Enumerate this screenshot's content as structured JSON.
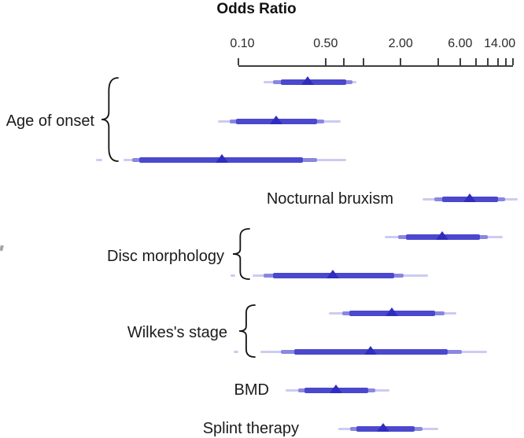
{
  "chart_data": {
    "type": "forest",
    "variant": "odds-ratio forest plot with nested credible intervals",
    "title": "Odds Ratio",
    "x_scale": "log",
    "x_axis": {
      "range": [
        0.1,
        16.0
      ],
      "ticks": [
        0.1,
        0.5,
        0.7,
        1,
        2,
        4,
        6,
        8,
        10,
        12,
        14,
        16
      ],
      "labeled_ticks": [
        {
          "value": 0.1,
          "label": "0.10"
        },
        {
          "value": 0.5,
          "label": "0.50"
        },
        {
          "value": 2,
          "label": "2.00"
        },
        {
          "value": 6,
          "label": "6.00"
        },
        {
          "value": 14,
          "label": "14.00"
        }
      ]
    },
    "groups": [
      {
        "label": "Age of onset",
        "brace": true,
        "row_indices": [
          0,
          1,
          2
        ]
      },
      {
        "label": "Nocturnal bruxism",
        "brace": false,
        "row_indices": [
          3
        ]
      },
      {
        "label": "Disc morphology",
        "brace": true,
        "row_indices": [
          4,
          5
        ]
      },
      {
        "label": "Wilkes's stage",
        "brace": true,
        "row_indices": [
          6,
          7
        ]
      },
      {
        "label": "BMD",
        "brace": false,
        "row_indices": [
          8
        ]
      },
      {
        "label": "Splint therapy",
        "brace": false,
        "row_indices": [
          9
        ]
      }
    ],
    "rows": [
      {
        "group": "Age of onset",
        "odds_ratio": 0.36,
        "ci_inner": [
          0.22,
          0.73
        ],
        "ci_mid": [
          0.19,
          0.82
        ],
        "ci_outer": [
          0.16,
          0.88
        ]
      },
      {
        "group": "Age of onset",
        "odds_ratio": 0.2,
        "ci_inner": [
          0.096,
          0.43
        ],
        "ci_mid": [
          0.085,
          0.49
        ],
        "ci_outer": [
          0.069,
          0.66
        ]
      },
      {
        "group": "Age of onset",
        "odds_ratio": 0.074,
        "ci_inner": [
          0.016,
          0.33
        ],
        "ci_mid": [
          0.014,
          0.43
        ],
        "ci_outer": [
          0.012,
          0.73
        ],
        "tail_fragment": [
          0.0072,
          0.0081
        ]
      },
      {
        "group": "Nocturnal bruxism",
        "odds_ratio": 7.2,
        "ci_inner": [
          4.3,
          12.1
        ],
        "ci_mid": [
          3.7,
          13.8
        ],
        "ci_outer": [
          3.0,
          17.3
        ]
      },
      {
        "group": "Disc morphology",
        "odds_ratio": 4.3,
        "ci_inner": [
          2.2,
          8.6
        ],
        "ci_mid": [
          1.9,
          10.0
        ],
        "ci_outer": [
          1.5,
          13.1
        ]
      },
      {
        "group": "Disc morphology",
        "odds_ratio": 0.57,
        "ci_inner": [
          0.19,
          1.78
        ],
        "ci_mid": [
          0.16,
          2.1
        ],
        "ci_outer": [
          0.13,
          3.3
        ],
        "tail_fragment": [
          0.086,
          0.094
        ]
      },
      {
        "group": "Wilkes's stage",
        "odds_ratio": 1.7,
        "ci_inner": [
          0.78,
          3.8
        ],
        "ci_mid": [
          0.68,
          4.5
        ],
        "ci_outer": [
          0.53,
          5.6
        ]
      },
      {
        "group": "Wilkes's stage",
        "odds_ratio": 1.15,
        "ci_inner": [
          0.28,
          4.8
        ],
        "ci_mid": [
          0.22,
          6.2
        ],
        "ci_outer": [
          0.15,
          9.9
        ],
        "tail_fragment": [
          0.092,
          0.1
        ]
      },
      {
        "group": "BMD",
        "odds_ratio": 0.61,
        "ci_inner": [
          0.34,
          1.1
        ],
        "ci_mid": [
          0.3,
          1.25
        ],
        "ci_outer": [
          0.24,
          1.63
        ]
      },
      {
        "group": "Splint therapy",
        "odds_ratio": 1.45,
        "ci_inner": [
          0.88,
          2.6
        ],
        "ci_mid": [
          0.79,
          3.0
        ],
        "ci_outer": [
          0.63,
          4.0
        ]
      }
    ],
    "legend_position": "none",
    "grid": false
  },
  "style": {
    "color_ci_outer": "#cbcbf2",
    "color_ci_mid": "#8987e0",
    "color_ci_inner": "#4b48ce",
    "color_marker": "#2f2cc0",
    "color_axis": "#3f3f3f",
    "color_text": "#1b1b1b"
  }
}
